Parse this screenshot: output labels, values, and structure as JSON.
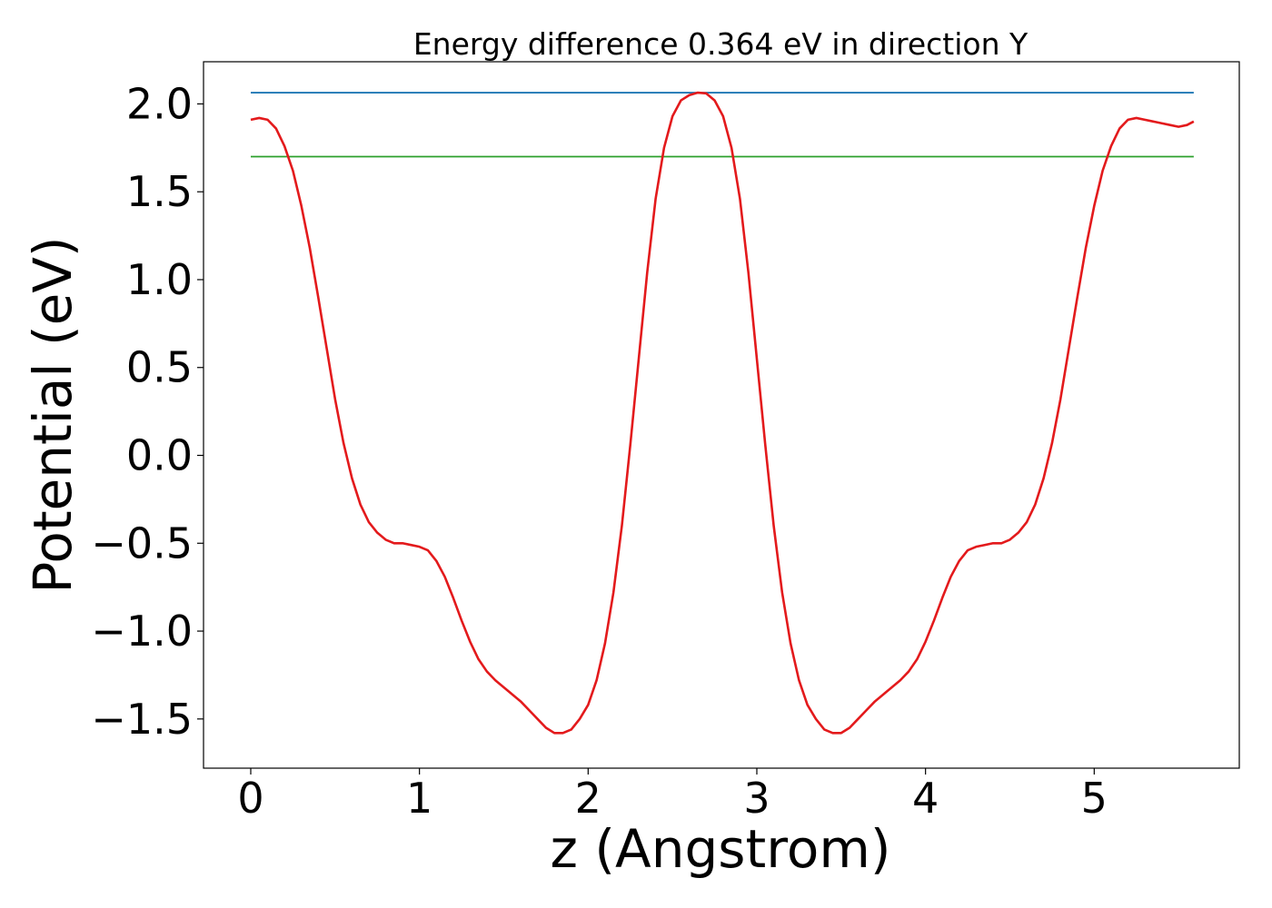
{
  "chart_data": {
    "type": "line",
    "title": "Energy difference 0.364 eV in direction Y",
    "xlabel": "z (Angstrom)",
    "ylabel": "Potential (eV)",
    "xlim": [
      -0.28,
      5.86
    ],
    "ylim": [
      -1.78,
      2.24
    ],
    "xticks": [
      0,
      1,
      2,
      3,
      4,
      5
    ],
    "xtick_labels": [
      "0",
      "1",
      "2",
      "3",
      "4",
      "5"
    ],
    "yticks": [
      -1.5,
      -1.0,
      -0.5,
      0.0,
      0.5,
      1.0,
      1.5,
      2.0
    ],
    "ytick_labels": [
      "−1.5",
      "−1.0",
      "−0.5",
      "0.0",
      "0.5",
      "1.0",
      "1.5",
      "2.0"
    ],
    "grid": false,
    "series": [
      {
        "color": "#1f77b4",
        "x": [
          0,
          5.59
        ],
        "y": [
          2.064,
          2.064
        ]
      },
      {
        "color": "#2ca02c",
        "x": [
          0,
          5.59
        ],
        "y": [
          1.7,
          1.7
        ]
      },
      {
        "color": "#e31a1c",
        "x": [
          0.0,
          0.05,
          0.1,
          0.15,
          0.2,
          0.25,
          0.3,
          0.35,
          0.4,
          0.45,
          0.5,
          0.55,
          0.6,
          0.65,
          0.7,
          0.75,
          0.8,
          0.85,
          0.9,
          0.95,
          1.0,
          1.05,
          1.1,
          1.15,
          1.2,
          1.25,
          1.3,
          1.35,
          1.4,
          1.45,
          1.5,
          1.55,
          1.6,
          1.65,
          1.7,
          1.75,
          1.8,
          1.85,
          1.9,
          1.95,
          2.0,
          2.05,
          2.1,
          2.15,
          2.2,
          2.25,
          2.3,
          2.35,
          2.4,
          2.45,
          2.5,
          2.55,
          2.6,
          2.65,
          2.7,
          2.75,
          2.8,
          2.85,
          2.9,
          2.95,
          3.0,
          3.05,
          3.1,
          3.15,
          3.2,
          3.25,
          3.3,
          3.35,
          3.4,
          3.45,
          3.5,
          3.55,
          3.6,
          3.65,
          3.7,
          3.75,
          3.8,
          3.85,
          3.9,
          3.95,
          4.0,
          4.05,
          4.1,
          4.15,
          4.2,
          4.25,
          4.3,
          4.35,
          4.4,
          4.45,
          4.5,
          4.55,
          4.6,
          4.65,
          4.7,
          4.75,
          4.8,
          4.85,
          4.9,
          4.95,
          5.0,
          5.05,
          5.1,
          5.15,
          5.2,
          5.25,
          5.3,
          5.35,
          5.4,
          5.45,
          5.5,
          5.55,
          5.59
        ],
        "y": [
          1.91,
          1.92,
          1.91,
          1.86,
          1.76,
          1.62,
          1.42,
          1.18,
          0.9,
          0.61,
          0.32,
          0.07,
          -0.13,
          -0.28,
          -0.38,
          -0.44,
          -0.48,
          -0.5,
          -0.5,
          -0.51,
          -0.52,
          -0.54,
          -0.6,
          -0.69,
          -0.81,
          -0.94,
          -1.06,
          -1.16,
          -1.23,
          -1.28,
          -1.32,
          -1.36,
          -1.4,
          -1.45,
          -1.5,
          -1.55,
          -1.58,
          -1.58,
          -1.56,
          -1.5,
          -1.42,
          -1.28,
          -1.07,
          -0.78,
          -0.4,
          0.06,
          0.55,
          1.04,
          1.46,
          1.75,
          1.93,
          2.02,
          2.05,
          2.064,
          2.06,
          2.02,
          1.93,
          1.75,
          1.46,
          1.04,
          0.55,
          0.06,
          -0.4,
          -0.78,
          -1.07,
          -1.28,
          -1.42,
          -1.5,
          -1.56,
          -1.58,
          -1.58,
          -1.55,
          -1.5,
          -1.45,
          -1.4,
          -1.36,
          -1.32,
          -1.28,
          -1.23,
          -1.16,
          -1.06,
          -0.94,
          -0.81,
          -0.69,
          -0.6,
          -0.54,
          -0.52,
          -0.51,
          -0.5,
          -0.5,
          -0.48,
          -0.44,
          -0.38,
          -0.28,
          -0.13,
          0.07,
          0.32,
          0.61,
          0.9,
          1.18,
          1.42,
          1.62,
          1.76,
          1.86,
          1.91,
          1.92,
          1.91,
          1.9,
          1.89,
          1.88,
          1.87,
          1.88,
          1.9
        ]
      }
    ]
  }
}
